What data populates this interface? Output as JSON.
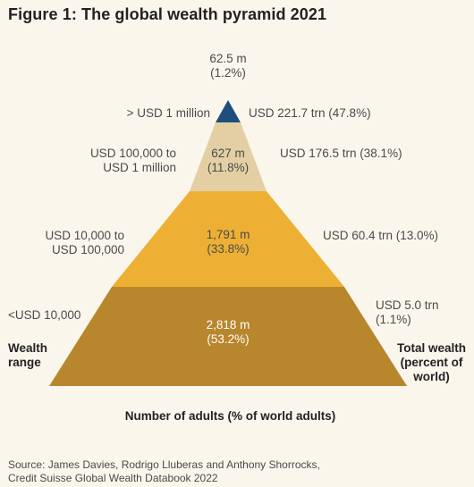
{
  "title": "Figure 1: The global wealth pyramid 2021",
  "chart_data": {
    "type": "pyramid",
    "left_axis_label": [
      "Wealth",
      "range"
    ],
    "right_axis_label": [
      "Total wealth",
      "(percent of",
      "world)"
    ],
    "xlabel": "Number of adults (% of world adults)",
    "tiers": [
      {
        "range": [
          "> USD 1 million"
        ],
        "adults": [
          "62.5 m",
          "(1.2%)"
        ],
        "adults_m": 62.5,
        "adults_pct": 1.2,
        "wealth": [
          "USD 221.7 trn (47.8%)"
        ],
        "wealth_trn": 221.7,
        "wealth_pct": 47.8,
        "color": "#1e4f7c"
      },
      {
        "range": [
          "USD 100,000 to",
          "USD 1 million"
        ],
        "adults": [
          "627 m",
          "(11.8%)"
        ],
        "adults_m": 627,
        "adults_pct": 11.8,
        "wealth": [
          "USD 176.5 trn (38.1%)"
        ],
        "wealth_trn": 176.5,
        "wealth_pct": 38.1,
        "color": "#e3cfa3"
      },
      {
        "range": [
          "USD 10,000 to",
          "USD 100,000"
        ],
        "adults": [
          "1,791 m",
          "(33.8%)"
        ],
        "adults_m": 1791,
        "adults_pct": 33.8,
        "wealth": [
          "USD 60.4 trn (13.0%)"
        ],
        "wealth_trn": 60.4,
        "wealth_pct": 13.0,
        "color": "#edb034"
      },
      {
        "range": [
          "<USD 10,000"
        ],
        "adults": [
          "2,818 m",
          "(53.2%)"
        ],
        "adults_m": 2818,
        "adults_pct": 53.2,
        "wealth": [
          "USD 5.0 trn",
          "(1.1%)"
        ],
        "wealth_trn": 5.0,
        "wealth_pct": 1.1,
        "color": "#b8862c"
      }
    ]
  },
  "source": [
    "Source: James Davies, Rodrigo Lluberas and Anthony Shorrocks,",
    "Credit Suisse Global Wealth Databook 2022"
  ]
}
